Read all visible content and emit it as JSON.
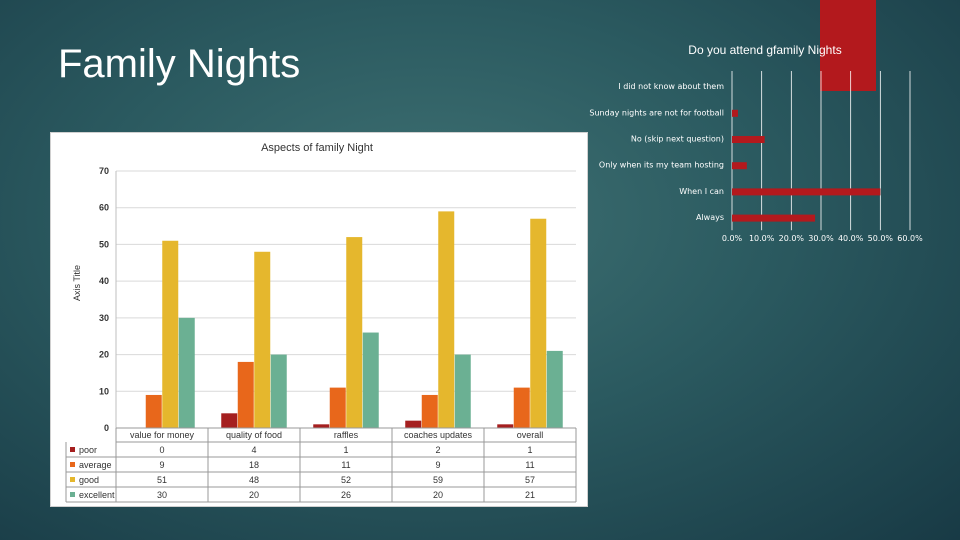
{
  "slide": {
    "title": "Family Nights"
  },
  "chart_data": [
    {
      "type": "bar",
      "orientation": "horizontal",
      "title": "Do you attend gfamily Nights",
      "categories": [
        "I did not know about them",
        "Sunday nights are not for football",
        "No (skip next question)",
        "Only when its my team hosting",
        "When I can",
        "Always"
      ],
      "values": [
        0.0,
        0.02,
        0.11,
        0.05,
        0.5,
        0.28
      ],
      "xlim": [
        0,
        0.6
      ],
      "xticks": [
        "0.0%",
        "10.0%",
        "20.0%",
        "30.0%",
        "40.0%",
        "50.0%",
        "60.0%"
      ],
      "color": "#b3191d"
    },
    {
      "type": "bar",
      "title": "Aspects of family Night",
      "ylabel": "Axis Title",
      "categories": [
        "value for money",
        "quality of food",
        "raffles",
        "coaches updates",
        "overall"
      ],
      "series": [
        {
          "name": "poor",
          "color": "#a51f1f",
          "values": [
            0,
            4,
            1,
            2,
            1
          ]
        },
        {
          "name": "average",
          "color": "#e8671b",
          "values": [
            9,
            18,
            11,
            9,
            11
          ]
        },
        {
          "name": "good",
          "color": "#e5b72d",
          "values": [
            51,
            48,
            52,
            59,
            57
          ]
        },
        {
          "name": "excellent",
          "color": "#6bb093",
          "values": [
            30,
            20,
            26,
            20,
            21
          ]
        }
      ],
      "ylim": [
        0,
        70
      ],
      "yticks": [
        0,
        10,
        20,
        30,
        40,
        50,
        60,
        70
      ],
      "data_table": true
    }
  ]
}
